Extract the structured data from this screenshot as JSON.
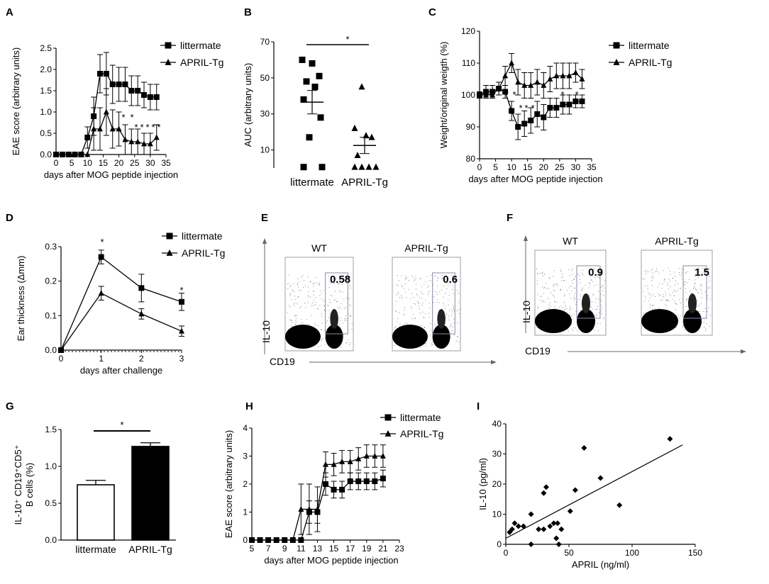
{
  "panels": {
    "A": {
      "label": "A",
      "chart_data": {
        "type": "line",
        "title": "",
        "xlabel": "days after MOG  peptide injection",
        "ylabel": "EAE score (arbitrary units)",
        "xlim": [
          0,
          35
        ],
        "ylim": [
          0,
          2.5
        ],
        "xticks": [
          "0",
          "5",
          "10",
          "15",
          "20",
          "25",
          "30",
          "35"
        ],
        "yticks": [
          "0.0",
          "0.5",
          "1.0",
          "1.5",
          "2.0",
          "2.5"
        ],
        "legend": "top-right",
        "annotations": [
          "*",
          "*",
          "*",
          "*",
          "*",
          "*",
          "*"
        ],
        "series": [
          {
            "name": "littermate",
            "marker": "square",
            "x": [
              0,
              2,
              4,
              6,
              8,
              10,
              12,
              14,
              16,
              18,
              20,
              22,
              24,
              26,
              28,
              30,
              32
            ],
            "y": [
              0,
              0,
              0,
              0,
              0,
              0.4,
              0.9,
              1.9,
              1.9,
              1.65,
              1.65,
              1.65,
              1.5,
              1.5,
              1.4,
              1.35,
              1.35
            ],
            "err": [
              0,
              0,
              0,
              0,
              0,
              0.25,
              0.45,
              0.45,
              0.5,
              0.45,
              0.4,
              0.4,
              0.35,
              0.35,
              0.3,
              0.3,
              0.3
            ]
          },
          {
            "name": "APRIL-Tg",
            "marker": "triangle",
            "x": [
              0,
              2,
              4,
              6,
              8,
              10,
              12,
              14,
              16,
              18,
              20,
              22,
              24,
              26,
              28,
              30,
              32
            ],
            "y": [
              0,
              0,
              0,
              0,
              0,
              0,
              0.6,
              0.6,
              1.0,
              0.6,
              0.6,
              0.35,
              0.3,
              0.3,
              0.25,
              0.25,
              0.4
            ],
            "err": [
              0,
              0,
              0,
              0,
              0,
              0,
              0.5,
              0.5,
              0.55,
              0.45,
              0.4,
              0.35,
              0.3,
              0.3,
              0.25,
              0.25,
              0.3
            ]
          }
        ]
      }
    },
    "B": {
      "label": "B",
      "chart_data": {
        "type": "scatter",
        "title": "",
        "xlabel": "",
        "ylabel": "AUC (arbitrary units)",
        "ylim": [
          0,
          70
        ],
        "yticks": [
          "10",
          "30",
          "50",
          "70"
        ],
        "categories": [
          "littermate",
          "APRIL-Tg"
        ],
        "annotations": [
          "*"
        ],
        "series": [
          {
            "name": "littermate",
            "marker": "square",
            "values": [
              60,
              58,
              51,
              48,
              45,
              38,
              28,
              17,
              0.5,
              0.5
            ],
            "mean": 36.5,
            "sem": 6.5
          },
          {
            "name": "APRIL-Tg",
            "marker": "triangle",
            "values": [
              45,
              22,
              18,
              17,
              7,
              0.5,
              0.5,
              0.5,
              0.5
            ],
            "mean": 12.5,
            "sem": 4.5
          }
        ]
      }
    },
    "C": {
      "label": "C",
      "chart_data": {
        "type": "line",
        "title": "",
        "xlabel": "days after MOG  peptide injection",
        "ylabel": "Weight/original weigth (%)",
        "xlim": [
          0,
          35
        ],
        "ylim": [
          80,
          120
        ],
        "xticks": [
          "0",
          "5",
          "10",
          "15",
          "20",
          "25",
          "30",
          "35"
        ],
        "yticks": [
          "80",
          "90",
          "100",
          "110",
          "120"
        ],
        "legend": "top-right",
        "annotations": [
          "*",
          "*",
          "*",
          "*",
          "*",
          "*"
        ],
        "series": [
          {
            "name": "littermate",
            "marker": "square",
            "x": [
              0,
              2,
              4,
              6,
              8,
              10,
              12,
              14,
              16,
              18,
              20,
              22,
              24,
              26,
              28,
              30,
              32
            ],
            "y": [
              100,
              101,
              101,
              102,
              101,
              95,
              90,
              91,
              92,
              94,
              93,
              96,
              96,
              97,
              97,
              98,
              98
            ],
            "err": [
              1,
              2,
              2,
              2,
              2,
              3,
              4,
              4,
              4,
              4,
              4,
              3,
              3,
              3,
              3,
              2,
              2
            ]
          },
          {
            "name": "APRIL-Tg",
            "marker": "triangle",
            "x": [
              0,
              2,
              4,
              6,
              8,
              10,
              12,
              14,
              16,
              18,
              20,
              22,
              24,
              26,
              28,
              30,
              32
            ],
            "y": [
              100,
              100,
              100,
              102,
              106,
              110,
              104,
              103,
              103,
              104,
              103,
              105,
              106,
              106,
              106,
              107,
              105
            ],
            "err": [
              1,
              1,
              1,
              2,
              3,
              3,
              4,
              4,
              4,
              4,
              4,
              4,
              4,
              4,
              4,
              3,
              3
            ]
          }
        ]
      }
    },
    "D": {
      "label": "D",
      "chart_data": {
        "type": "line",
        "title": "",
        "xlabel": "days after challenge",
        "ylabel": "Ear thickness (Δmm)",
        "xlim": [
          0,
          3
        ],
        "ylim": [
          0,
          0.3
        ],
        "xticks": [
          "0",
          "1",
          "2",
          "3"
        ],
        "yticks": [
          "0.0",
          "0.1",
          "0.2",
          "0.3"
        ],
        "legend": "top-right",
        "annotations": [
          "*",
          "*"
        ],
        "series": [
          {
            "name": "littermate",
            "marker": "square",
            "x": [
              0,
              1,
              2,
              3
            ],
            "y": [
              0,
              0.27,
              0.18,
              0.14
            ],
            "err": [
              0,
              0.02,
              0.04,
              0.025
            ]
          },
          {
            "name": "APRIL-Tg",
            "marker": "triangle",
            "x": [
              0,
              1,
              2,
              3
            ],
            "y": [
              0,
              0.165,
              0.105,
              0.055
            ],
            "err": [
              0,
              0.02,
              0.015,
              0.015
            ]
          }
        ]
      }
    },
    "E": {
      "label": "E",
      "y_axis": "IL-10",
      "x_axis": "CD19",
      "plots": [
        {
          "title": "WT",
          "gate_value": "0.58"
        },
        {
          "title": "APRIL-Tg",
          "gate_value": "0.6"
        }
      ]
    },
    "F": {
      "label": "F",
      "y_axis": "IL-10",
      "x_axis": "CD19",
      "plots": [
        {
          "title": "WT",
          "gate_value": "0.9"
        },
        {
          "title": "APRIL-Tg",
          "gate_value": "1.5"
        }
      ]
    },
    "G": {
      "label": "G",
      "chart_data": {
        "type": "bar",
        "title": "",
        "xlabel": "",
        "ylabel": "IL-10⁺ CD19⁺CD5⁺ B cells (%)",
        "ylabel_line1": "IL-10⁺ CD19⁺CD5⁺",
        "ylabel_line2": "B cells (%)",
        "ylim": [
          0,
          1.5
        ],
        "yticks": [
          "0.0",
          "0.5",
          "1.0",
          "1.5"
        ],
        "categories": [
          "littermate",
          "APRIL-Tg"
        ],
        "values": [
          0.75,
          1.27
        ],
        "errors": [
          0.06,
          0.05
        ],
        "colors": [
          "#ffffff",
          "#000000"
        ],
        "annotations": [
          "*"
        ]
      }
    },
    "H": {
      "label": "H",
      "chart_data": {
        "type": "line",
        "title": "",
        "xlabel": "days after MOG  peptide injection",
        "ylabel": "EAE score (arbitrary units)",
        "xlim": [
          5,
          23
        ],
        "ylim": [
          0,
          4
        ],
        "xticks": [
          "5",
          "7",
          "9",
          "11",
          "13",
          "15",
          "17",
          "19",
          "21",
          "23"
        ],
        "yticks": [
          "0",
          "1",
          "2",
          "3",
          "4"
        ],
        "legend": "top-right",
        "series": [
          {
            "name": "littermate",
            "marker": "square",
            "x": [
              5,
              6,
              7,
              8,
              9,
              10,
              11,
              12,
              13,
              14,
              15,
              16,
              17,
              18,
              19,
              20,
              21
            ],
            "y": [
              0,
              0,
              0,
              0,
              0,
              0,
              0,
              1,
              1,
              2,
              1.8,
              1.8,
              2.1,
              2.1,
              2.1,
              2.1,
              2.2
            ],
            "err": [
              0,
              0,
              0,
              0,
              0,
              0,
              0,
              0.4,
              0.4,
              0.4,
              0.3,
              0.3,
              0.3,
              0.3,
              0.3,
              0.3,
              0.3
            ]
          },
          {
            "name": "APRIL-Tg",
            "marker": "triangle",
            "x": [
              5,
              6,
              7,
              8,
              9,
              10,
              11,
              12,
              13,
              14,
              15,
              16,
              17,
              18,
              19,
              20,
              21
            ],
            "y": [
              0,
              0,
              0,
              0,
              0,
              0,
              1.1,
              1.1,
              1.1,
              2.7,
              2.7,
              2.8,
              2.8,
              2.9,
              3.0,
              3.0,
              3.0
            ],
            "err": [
              0,
              0,
              0,
              0,
              0,
              0,
              0.9,
              0.9,
              0.8,
              0.45,
              0.4,
              0.4,
              0.4,
              0.4,
              0.4,
              0.4,
              0.4
            ]
          }
        ]
      }
    },
    "I": {
      "label": "I",
      "chart_data": {
        "type": "scatter",
        "title": "",
        "xlabel": "APRIL  (ng/ml)",
        "ylabel": "IL-10 (pg/ml)",
        "xlim": [
          0,
          150
        ],
        "ylim": [
          0,
          40
        ],
        "xticks": [
          "0",
          "50",
          "100",
          "150"
        ],
        "yticks": [
          "0",
          "10",
          "20",
          "30",
          "40"
        ],
        "points": [
          [
            3,
            4
          ],
          [
            5,
            5
          ],
          [
            7,
            7
          ],
          [
            10,
            6
          ],
          [
            14,
            6
          ],
          [
            20,
            0
          ],
          [
            20,
            10
          ],
          [
            26,
            5
          ],
          [
            30,
            5
          ],
          [
            30,
            17
          ],
          [
            32,
            19
          ],
          [
            35,
            6
          ],
          [
            38,
            7
          ],
          [
            40,
            2
          ],
          [
            41,
            7
          ],
          [
            42,
            0
          ],
          [
            44,
            5
          ],
          [
            51,
            11
          ],
          [
            55,
            18
          ],
          [
            62,
            32
          ],
          [
            75,
            22
          ],
          [
            90,
            13
          ],
          [
            130,
            35
          ]
        ],
        "trendline": {
          "x": [
            0,
            140
          ],
          "y": [
            2,
            33
          ]
        }
      }
    }
  }
}
